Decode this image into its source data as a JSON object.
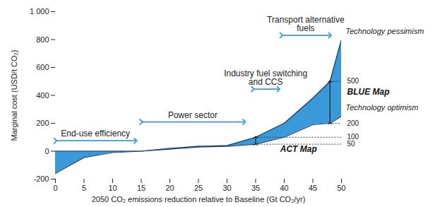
{
  "chart_data": {
    "type": "area",
    "xlabel": "2050 CO₂ emissions reduction relative to Baseline (Gt CO₂/yr)",
    "ylabel": "Marginal cost (USD/t CO₂)",
    "color": "#3a9ad9",
    "x": [
      0,
      5,
      10,
      15,
      20,
      25,
      30,
      35,
      40,
      45,
      48,
      50
    ],
    "series": [
      {
        "name": "Technology optimism",
        "color": "#1f3f6e",
        "values": [
          -160,
          -45,
          -10,
          0,
          15,
          30,
          35,
          50,
          100,
          190,
          200,
          250
        ]
      },
      {
        "name": "Technology pessimism",
        "color": "#1f3f6e",
        "values": [
          0,
          0,
          0,
          0,
          20,
          35,
          40,
          100,
          200,
          380,
          500,
          800
        ]
      }
    ],
    "xlim": [
      0,
      50
    ],
    "xticks": [
      0,
      5,
      10,
      15,
      20,
      25,
      30,
      35,
      40,
      45,
      50
    ],
    "ylim": [
      -200,
      1000
    ],
    "yticks": [
      -200,
      0,
      200,
      400,
      600,
      800,
      {
        "value": 1000,
        "label": "1 000"
      }
    ],
    "sector_ranges": [
      {
        "label": "End-use efficiency",
        "x": [
          0,
          14
        ],
        "y": 75
      },
      {
        "label": "Power sector",
        "x": [
          15,
          33
        ],
        "y": 210
      },
      {
        "label": "Industry fuel switching\nand CCS",
        "x": [
          34.5,
          39
        ],
        "y": 445
      },
      {
        "label": "Transport alternative\nfuels",
        "x": [
          39.5,
          48
        ],
        "y": 830
      }
    ],
    "scenario_ranges": [
      {
        "label": "ACT Map",
        "x": 35,
        "low": 50,
        "high": 100
      },
      {
        "label": "BLUE Map",
        "x": 48,
        "low": 200,
        "high": 500
      }
    ]
  }
}
